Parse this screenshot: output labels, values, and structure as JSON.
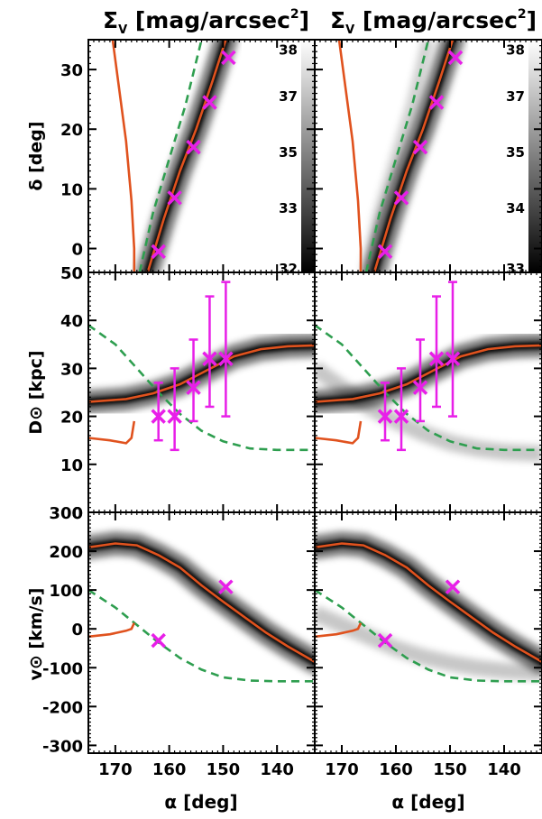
{
  "figure": {
    "column_titles": [
      {
        "base": "Σ",
        "sub": "V",
        "rest": " [mag/arcsec",
        "sup": "2",
        "close": "]"
      },
      {
        "base": "Σ",
        "sub": "V",
        "rest": " [mag/arcsec",
        "sup": "2",
        "close": "]"
      }
    ],
    "xlabel": "α [deg]",
    "x_ticks": [
      170,
      160,
      150,
      140
    ],
    "xlim": [
      175,
      133
    ],
    "colorbars": [
      {
        "ticks": [
          "38",
          "37",
          "35",
          "33",
          "32"
        ]
      },
      {
        "ticks": [
          "38",
          "37",
          "35",
          "34",
          "33"
        ]
      }
    ],
    "colors": {
      "model_orbit": "#e0521e",
      "alt_orbit": "#2e9e4f",
      "observations": "#e81fe8",
      "density": "#000000",
      "axes": "#000000"
    }
  },
  "chart_data": [
    {
      "type": "scatter",
      "panel": "declination",
      "ylabel": "δ [deg]",
      "y_ticks": [
        0,
        10,
        20,
        30
      ],
      "ylim": [
        -4,
        35
      ],
      "xlim": [
        175,
        133
      ],
      "series": [
        {
          "x": [
            162,
            159,
            155.5,
            152.5,
            149
          ],
          "y": [
            -0.5,
            8.5,
            17,
            24.5,
            32
          ]
        }
      ]
    },
    {
      "type": "scatter",
      "panel": "distance",
      "ylabel": "D⊙ [kpc]",
      "y_ticks": [
        0,
        10,
        20,
        30,
        40,
        50
      ],
      "ylim": [
        0,
        50
      ],
      "xlim": [
        175,
        133
      ],
      "series": [
        {
          "x": [
            162,
            159,
            155.5,
            152.5,
            149.5
          ],
          "y": [
            20,
            20,
            26,
            32,
            32
          ],
          "y_low": [
            15,
            13,
            19,
            22,
            20
          ],
          "y_high": [
            27,
            30,
            36,
            45,
            48
          ]
        }
      ]
    },
    {
      "type": "scatter",
      "panel": "velocity",
      "ylabel": "v⊙ [km/s]",
      "y_ticks": [
        -300,
        -200,
        -100,
        0,
        100,
        200,
        300
      ],
      "ylim": [
        -320,
        300
      ],
      "xlim": [
        175,
        133
      ],
      "series": [
        {
          "x": [
            162,
            149.5
          ],
          "y": [
            -30,
            108
          ]
        }
      ]
    }
  ]
}
